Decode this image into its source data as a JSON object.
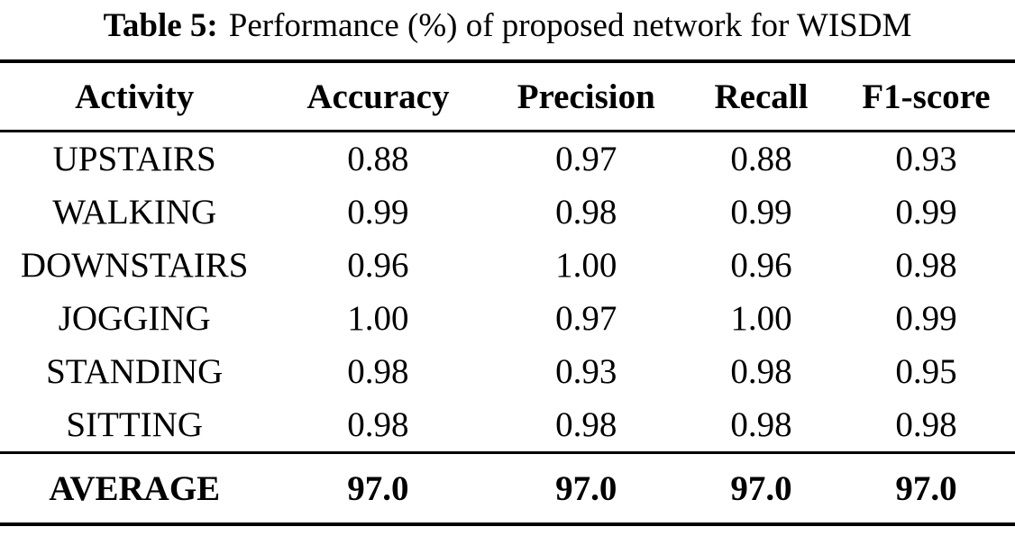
{
  "caption": {
    "label": "Table 5:",
    "text": "Performance (%) of proposed network for WISDM"
  },
  "table": {
    "columns": [
      "Activity",
      "Accuracy",
      "Precision",
      "Recall",
      "F1-score"
    ],
    "rows": [
      [
        "UPSTAIRS",
        "0.88",
        "0.97",
        "0.88",
        "0.93"
      ],
      [
        "WALKING",
        "0.99",
        "0.98",
        "0.99",
        "0.99"
      ],
      [
        "DOWNSTAIRS",
        "0.96",
        "1.00",
        "0.96",
        "0.98"
      ],
      [
        "JOGGING",
        "1.00",
        "0.97",
        "1.00",
        "0.99"
      ],
      [
        "STANDING",
        "0.98",
        "0.93",
        "0.98",
        "0.95"
      ],
      [
        "SITTING",
        "0.98",
        "0.98",
        "0.98",
        "0.98"
      ]
    ],
    "average_row": [
      "AVERAGE",
      "97.0",
      "97.0",
      "97.0",
      "97.0"
    ]
  },
  "chart_data": {
    "type": "table",
    "title": "Table 5: Performance (%) of proposed network for WISDM",
    "columns": [
      "Activity",
      "Accuracy",
      "Precision",
      "Recall",
      "F1-score"
    ],
    "rows": [
      {
        "activity": "UPSTAIRS",
        "accuracy": 0.88,
        "precision": 0.97,
        "recall": 0.88,
        "f1_score": 0.93
      },
      {
        "activity": "WALKING",
        "accuracy": 0.99,
        "precision": 0.98,
        "recall": 0.99,
        "f1_score": 0.99
      },
      {
        "activity": "DOWNSTAIRS",
        "accuracy": 0.96,
        "precision": 1.0,
        "recall": 0.96,
        "f1_score": 0.98
      },
      {
        "activity": "JOGGING",
        "accuracy": 1.0,
        "precision": 0.97,
        "recall": 1.0,
        "f1_score": 0.99
      },
      {
        "activity": "STANDING",
        "accuracy": 0.98,
        "precision": 0.93,
        "recall": 0.98,
        "f1_score": 0.95
      },
      {
        "activity": "SITTING",
        "accuracy": 0.98,
        "precision": 0.98,
        "recall": 0.98,
        "f1_score": 0.98
      }
    ],
    "average": {
      "activity": "AVERAGE",
      "accuracy": 97.0,
      "precision": 97.0,
      "recall": 97.0,
      "f1_score": 97.0
    }
  }
}
